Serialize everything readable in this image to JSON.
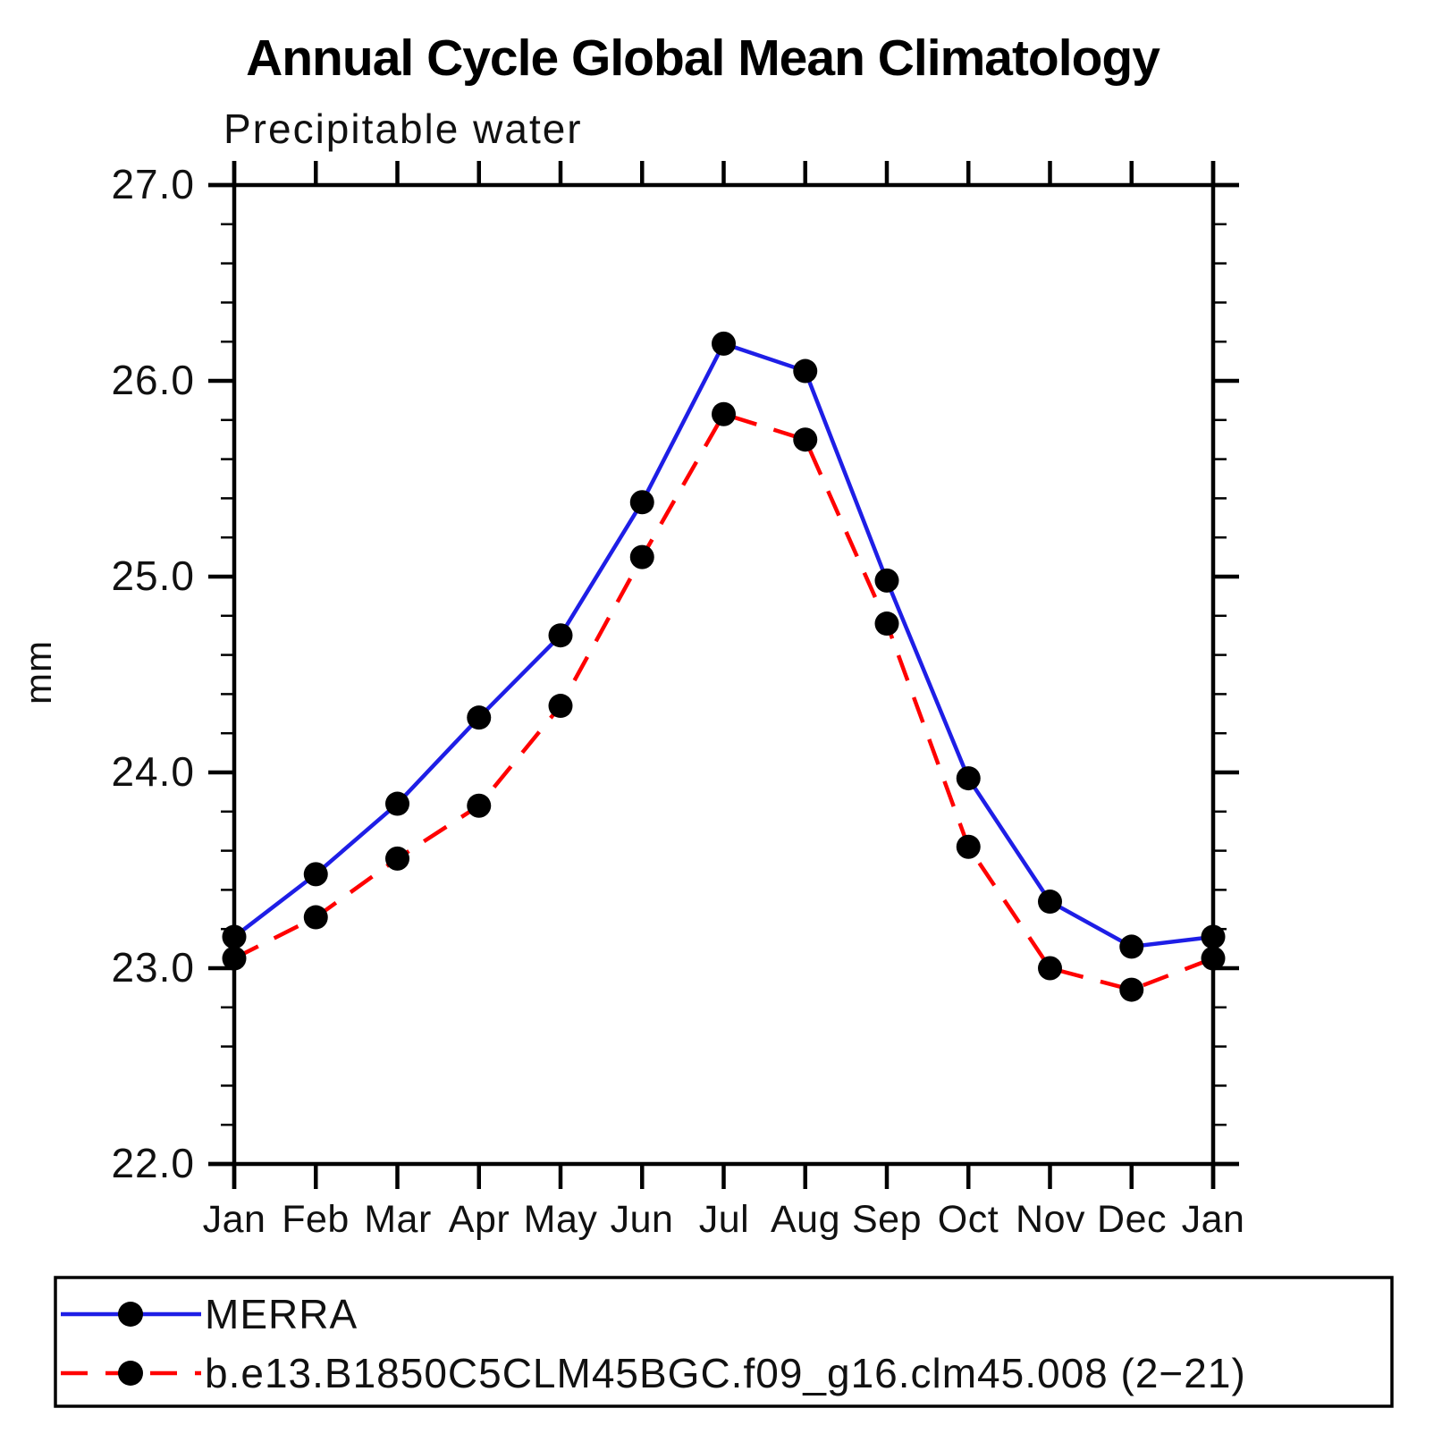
{
  "header": {
    "title": "Annual Cycle Global Mean Climatology",
    "subtitle": "Precipitable water"
  },
  "chart_data": {
    "type": "line",
    "title": "Annual Cycle Global Mean Climatology",
    "subtitle": "Precipitable water",
    "xlabel": "",
    "ylabel": "mm",
    "categories": [
      "Jan",
      "Feb",
      "Mar",
      "Apr",
      "May",
      "Jun",
      "Jul",
      "Aug",
      "Sep",
      "Oct",
      "Nov",
      "Dec",
      "Jan"
    ],
    "ylim": [
      22.0,
      27.0
    ],
    "y_major_tick_step": 1.0,
    "y_minor_tick_step": 0.2,
    "ytick_labels": [
      "27.0",
      "26.0",
      "25.0",
      "24.0",
      "23.0",
      "22.0"
    ],
    "grid": false,
    "legend_position": "bottom-left-box",
    "axis_color": "#000000",
    "marker_radius": 13.5,
    "series": [
      {
        "name": "MERRA",
        "line_style": "solid",
        "color": "#1e1ee6",
        "marker": "circle",
        "marker_color": "#000000",
        "values": [
          23.16,
          23.48,
          23.84,
          24.28,
          24.7,
          25.38,
          26.19,
          26.05,
          24.98,
          23.97,
          23.34,
          23.11,
          23.16
        ]
      },
      {
        "name": "b.e13.B1850C5CLM45BGC.f09_g16.clm45.008 (2−21)",
        "line_style": "dashed",
        "color": "#ff0000",
        "marker": "circle",
        "marker_color": "#000000",
        "values": [
          23.05,
          23.26,
          23.56,
          23.83,
          24.34,
          25.1,
          25.83,
          25.7,
          24.76,
          23.62,
          23.0,
          22.89,
          23.05
        ]
      }
    ]
  }
}
